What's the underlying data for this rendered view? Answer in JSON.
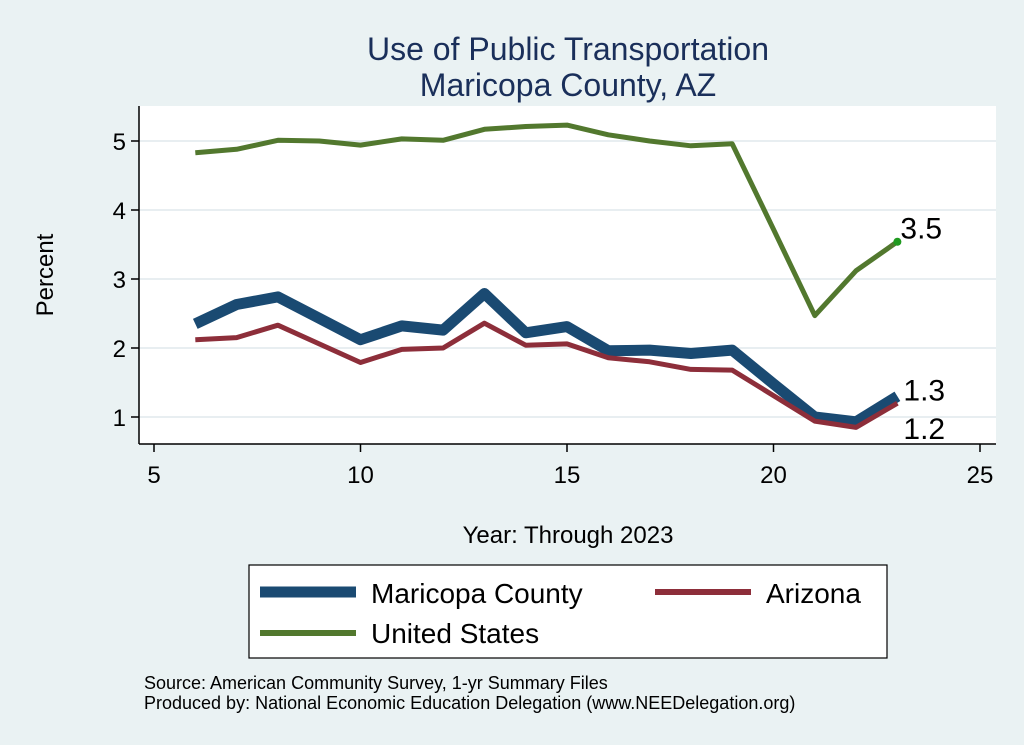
{
  "chart_data": {
    "type": "line",
    "title": "Use of Public Transportation",
    "subtitle": "Maricopa County, AZ",
    "xlabel": "Year: Through 2023",
    "ylabel": "Percent",
    "xlim": [
      5,
      25
    ],
    "ylim": [
      0.6,
      5.5
    ],
    "xticks": [
      5,
      10,
      15,
      20,
      25
    ],
    "yticks": [
      1,
      2,
      3,
      4,
      5
    ],
    "grid": "horizontal",
    "legend_position": "bottom",
    "x": [
      6,
      7,
      8,
      9,
      10,
      11,
      12,
      13,
      14,
      15,
      16,
      17,
      18,
      19,
      20,
      21,
      22,
      23
    ],
    "series": [
      {
        "name": "Maricopa County",
        "color": "#1a4a72",
        "y": [
          2.35,
          2.63,
          2.74,
          2.43,
          2.12,
          2.32,
          2.26,
          2.79,
          2.22,
          2.31,
          1.96,
          1.97,
          1.92,
          1.97,
          1.48,
          1.0,
          0.93,
          1.3
        ],
        "end_label": "1.3"
      },
      {
        "name": "Arizona",
        "color": "#8d2e3a",
        "y": [
          2.12,
          2.15,
          2.33,
          2.06,
          1.79,
          1.98,
          2.0,
          2.36,
          2.04,
          2.06,
          1.86,
          1.8,
          1.69,
          1.68,
          1.31,
          0.94,
          0.85,
          1.2
        ],
        "end_label": "1.2"
      },
      {
        "name": "United States",
        "color": "#52782e",
        "y": [
          4.83,
          4.88,
          5.01,
          5.0,
          4.94,
          5.03,
          5.01,
          5.17,
          5.21,
          5.23,
          5.09,
          5.0,
          4.93,
          4.96,
          3.72,
          2.47,
          3.12,
          3.54
        ],
        "end_label": "3.5"
      }
    ],
    "notes": [
      "Source: American Community Survey, 1-yr Summary Files",
      "Produced by: National Economic Education Delegation (www.NEEDelegation.org)"
    ]
  }
}
